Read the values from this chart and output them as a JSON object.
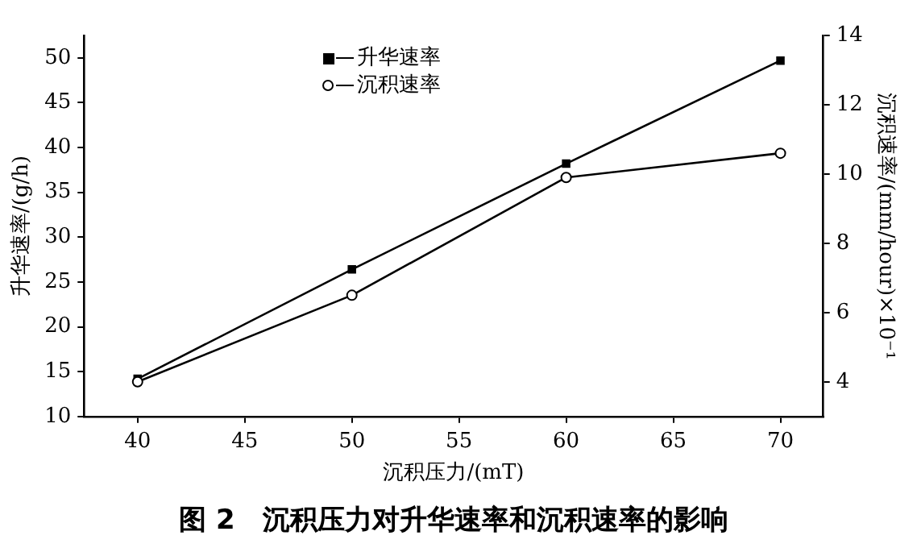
{
  "chart_data": {
    "type": "line",
    "title": "图 2　沉积压力对升华速率和沉积速率的影响",
    "xlabel": "沉积压力/(mT)",
    "ylabel": "升华速率/(g/h)",
    "y2label": "沉积速率/(mm/hour)×10⁻¹",
    "x": [
      40,
      50,
      60,
      70
    ],
    "series": [
      {
        "name": "升华速率",
        "color": "#000000",
        "marker": "square",
        "values": [
          14.2,
          26.4,
          38.2,
          49.7
        ]
      },
      {
        "name": "沉积速率",
        "color": "#000000",
        "marker": "circle",
        "axis": "y2",
        "values": [
          4.0,
          6.5,
          9.9,
          10.6
        ]
      }
    ],
    "xlim": [
      37.5,
      72
    ],
    "xticks": [
      40,
      45,
      50,
      55,
      60,
      65,
      70
    ],
    "ylim": [
      10,
      52.5
    ],
    "yticks": [
      10,
      15,
      20,
      25,
      30,
      35,
      40,
      45,
      50
    ],
    "y2lim": [
      3,
      14
    ],
    "y2ticks": [
      4,
      6,
      8,
      10,
      12,
      14
    ],
    "legend": "top",
    "grid": false,
    "line_style": "solid"
  }
}
